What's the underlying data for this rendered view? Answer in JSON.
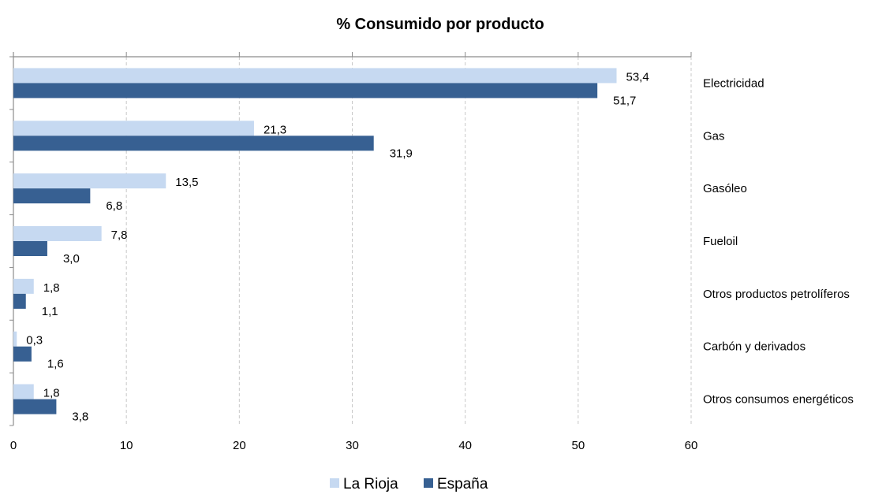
{
  "chart_data": {
    "type": "bar",
    "orientation": "horizontal",
    "title": "%  Consumido por producto",
    "categories": [
      "Electricidad",
      "Gas",
      "Gasóleo",
      "Fueloil",
      "Otros productos petrolíferos",
      "Carbón y derivados",
      "Otros consumos energéticos"
    ],
    "series": [
      {
        "name": "La Rioja",
        "color": "#c6d9f1",
        "values": [
          53.4,
          21.3,
          13.5,
          7.8,
          1.8,
          0.3,
          1.8
        ],
        "labels": [
          "53,4",
          "21,3",
          "13,5",
          "7,8",
          "1,8",
          "0,3",
          "1,8"
        ]
      },
      {
        "name": "España",
        "color": "#376092",
        "values": [
          51.7,
          31.9,
          6.8,
          3.0,
          1.1,
          1.6,
          3.8
        ],
        "labels": [
          "51,7",
          "31,9",
          "6,8",
          "3,0",
          "1,1",
          "1,6",
          "3,8"
        ]
      }
    ],
    "xlim": [
      0,
      60
    ],
    "xticks": [
      "0",
      "10",
      "20",
      "30",
      "40",
      "50",
      "60"
    ],
    "xlabel": "",
    "ylabel": "",
    "grid": "vertical dashed",
    "legend_position": "bottom-center",
    "category_label_position": "right"
  }
}
